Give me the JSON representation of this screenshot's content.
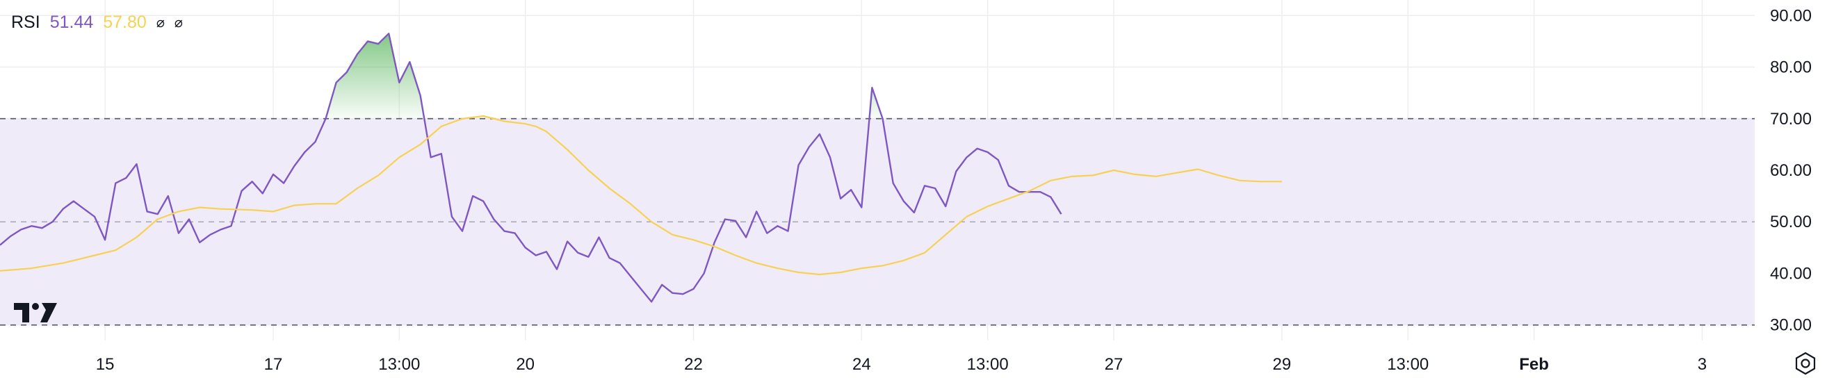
{
  "legend": {
    "name": "RSI",
    "rsi_value": "51.44",
    "ma_value": "57.80",
    "symbol_1": "⌀",
    "symbol_2": "⌀"
  },
  "icons": {
    "logo": "tradingview-logo-icon",
    "settings": "settings-gear-icon"
  },
  "colors": {
    "rsi_line": "#7e57c2",
    "ma_line": "#f7d154",
    "band_fill": "#efebf8",
    "overbought_fill": "#4caf50",
    "grid": "#eeeef2"
  },
  "chart_data": {
    "type": "line",
    "ylim": [
      27,
      93
    ],
    "y_ticks": [
      "90.00",
      "80.00",
      "70.00",
      "60.00",
      "50.00",
      "40.00",
      "30.00"
    ],
    "y_tick_values": [
      90,
      80,
      70,
      60,
      50,
      40,
      30
    ],
    "bands": {
      "upper": 70,
      "middle": 50,
      "lower": 30
    },
    "x_range": [
      0,
      167
    ],
    "x_ticks": [
      {
        "label": "15",
        "x": 10,
        "bold": false
      },
      {
        "label": "17",
        "x": 26,
        "bold": false
      },
      {
        "label": "13:00",
        "x": 38,
        "bold": false
      },
      {
        "label": "20",
        "x": 50,
        "bold": false
      },
      {
        "label": "22",
        "x": 66,
        "bold": false
      },
      {
        "label": "24",
        "x": 82,
        "bold": false
      },
      {
        "label": "13:00",
        "x": 94,
        "bold": false
      },
      {
        "label": "27",
        "x": 106,
        "bold": false
      },
      {
        "label": "29",
        "x": 122,
        "bold": false
      },
      {
        "label": "13:00",
        "x": 134,
        "bold": false
      },
      {
        "label": "Feb",
        "x": 146,
        "bold": true
      },
      {
        "label": "3",
        "x": 162,
        "bold": false
      }
    ],
    "grid": true,
    "series": [
      {
        "values": [
          [
            0,
            45.5
          ],
          [
            1,
            47.2
          ],
          [
            2,
            48.5
          ],
          [
            3,
            49.2
          ],
          [
            4,
            48.8
          ],
          [
            5,
            50
          ],
          [
            6,
            52.5
          ],
          [
            7,
            54
          ],
          [
            8,
            52.5
          ],
          [
            9,
            51
          ],
          [
            10,
            46.5
          ],
          [
            11,
            57.5
          ],
          [
            12,
            58.5
          ],
          [
            13,
            61.2
          ],
          [
            14,
            52
          ],
          [
            15,
            51.5
          ],
          [
            16,
            55
          ],
          [
            17,
            47.8
          ],
          [
            18,
            50.5
          ],
          [
            19,
            46
          ],
          [
            20,
            47.5
          ],
          [
            21,
            48.5
          ],
          [
            22,
            49.2
          ],
          [
            23,
            56
          ],
          [
            24,
            57.8
          ],
          [
            25,
            55.5
          ],
          [
            26,
            59.2
          ],
          [
            27,
            57.5
          ],
          [
            28,
            60.8
          ],
          [
            29,
            63.5
          ],
          [
            30,
            65.5
          ],
          [
            31,
            70
          ],
          [
            32,
            77
          ],
          [
            33,
            79
          ],
          [
            34,
            82.5
          ],
          [
            35,
            85
          ],
          [
            36,
            84.5
          ],
          [
            37,
            86.5
          ],
          [
            38,
            77
          ],
          [
            39,
            81
          ],
          [
            40,
            74.5
          ],
          [
            41,
            62.5
          ],
          [
            42,
            63.2
          ],
          [
            43,
            51
          ],
          [
            44,
            48.2
          ],
          [
            45,
            55
          ],
          [
            46,
            54
          ],
          [
            47,
            50.5
          ],
          [
            48,
            48.2
          ],
          [
            49,
            47.8
          ],
          [
            50,
            45
          ],
          [
            51,
            43.5
          ],
          [
            52,
            44.2
          ],
          [
            53,
            40.8
          ],
          [
            54,
            46.2
          ],
          [
            55,
            44
          ],
          [
            56,
            43.2
          ],
          [
            57,
            47
          ],
          [
            58,
            43
          ],
          [
            59,
            42
          ],
          [
            60,
            39.5
          ],
          [
            61,
            37
          ],
          [
            62,
            34.5
          ],
          [
            63,
            37.8
          ],
          [
            64,
            36.2
          ],
          [
            65,
            36
          ],
          [
            66,
            37
          ],
          [
            67,
            40
          ],
          [
            68,
            46
          ],
          [
            69,
            50.5
          ],
          [
            70,
            50.2
          ],
          [
            71,
            47
          ],
          [
            72,
            52
          ],
          [
            73,
            47.8
          ],
          [
            74,
            49.2
          ],
          [
            75,
            48.2
          ],
          [
            76,
            61
          ],
          [
            77,
            64.5
          ],
          [
            78,
            67
          ],
          [
            79,
            62.5
          ],
          [
            80,
            54.5
          ],
          [
            81,
            56.2
          ],
          [
            82,
            52.8
          ],
          [
            83,
            76
          ],
          [
            84,
            70
          ],
          [
            85,
            57.5
          ],
          [
            86,
            54
          ],
          [
            87,
            51.8
          ],
          [
            88,
            57
          ],
          [
            89,
            56.5
          ],
          [
            90,
            53
          ],
          [
            91,
            59.8
          ],
          [
            92,
            62.5
          ],
          [
            93,
            64.2
          ],
          [
            94,
            63.5
          ],
          [
            95,
            62
          ],
          [
            96,
            57
          ],
          [
            97,
            55.8
          ],
          [
            98,
            55.8
          ],
          [
            99,
            55.8
          ],
          [
            100,
            54.8
          ],
          [
            101,
            51.5
          ]
        ]
      },
      {
        "values": [
          [
            0,
            40.5
          ],
          [
            3,
            41
          ],
          [
            6,
            42
          ],
          [
            9,
            43.5
          ],
          [
            11,
            44.5
          ],
          [
            13,
            47
          ],
          [
            15,
            50.5
          ],
          [
            17,
            52
          ],
          [
            19,
            52.8
          ],
          [
            21,
            52.5
          ],
          [
            24,
            52.3
          ],
          [
            26,
            52
          ],
          [
            28,
            53.2
          ],
          [
            30,
            53.5
          ],
          [
            32,
            53.5
          ],
          [
            34,
            56.5
          ],
          [
            36,
            59
          ],
          [
            38,
            62.5
          ],
          [
            40,
            65
          ],
          [
            42,
            68.5
          ],
          [
            44,
            70
          ],
          [
            46,
            70.5
          ],
          [
            48,
            69.5
          ],
          [
            50,
            69
          ],
          [
            51,
            68.5
          ],
          [
            52,
            67.5
          ],
          [
            54,
            64
          ],
          [
            56,
            60
          ],
          [
            58,
            56.5
          ],
          [
            60,
            53.5
          ],
          [
            62,
            50
          ],
          [
            64,
            47.5
          ],
          [
            66,
            46.5
          ],
          [
            68,
            45.2
          ],
          [
            70,
            43.5
          ],
          [
            72,
            42
          ],
          [
            74,
            41
          ],
          [
            76,
            40.2
          ],
          [
            78,
            39.8
          ],
          [
            80,
            40.2
          ],
          [
            82,
            41
          ],
          [
            84,
            41.5
          ],
          [
            86,
            42.5
          ],
          [
            88,
            44
          ],
          [
            90,
            47.5
          ],
          [
            92,
            51
          ],
          [
            94,
            53
          ],
          [
            96,
            54.5
          ],
          [
            98,
            56
          ],
          [
            100,
            58
          ],
          [
            102,
            58.8
          ],
          [
            104,
            59
          ],
          [
            106,
            60
          ],
          [
            108,
            59.2
          ],
          [
            110,
            58.8
          ],
          [
            112,
            59.5
          ],
          [
            114,
            60.2
          ],
          [
            116,
            59
          ],
          [
            118,
            58
          ],
          [
            120,
            57.8
          ],
          [
            122,
            57.8
          ]
        ]
      }
    ]
  }
}
